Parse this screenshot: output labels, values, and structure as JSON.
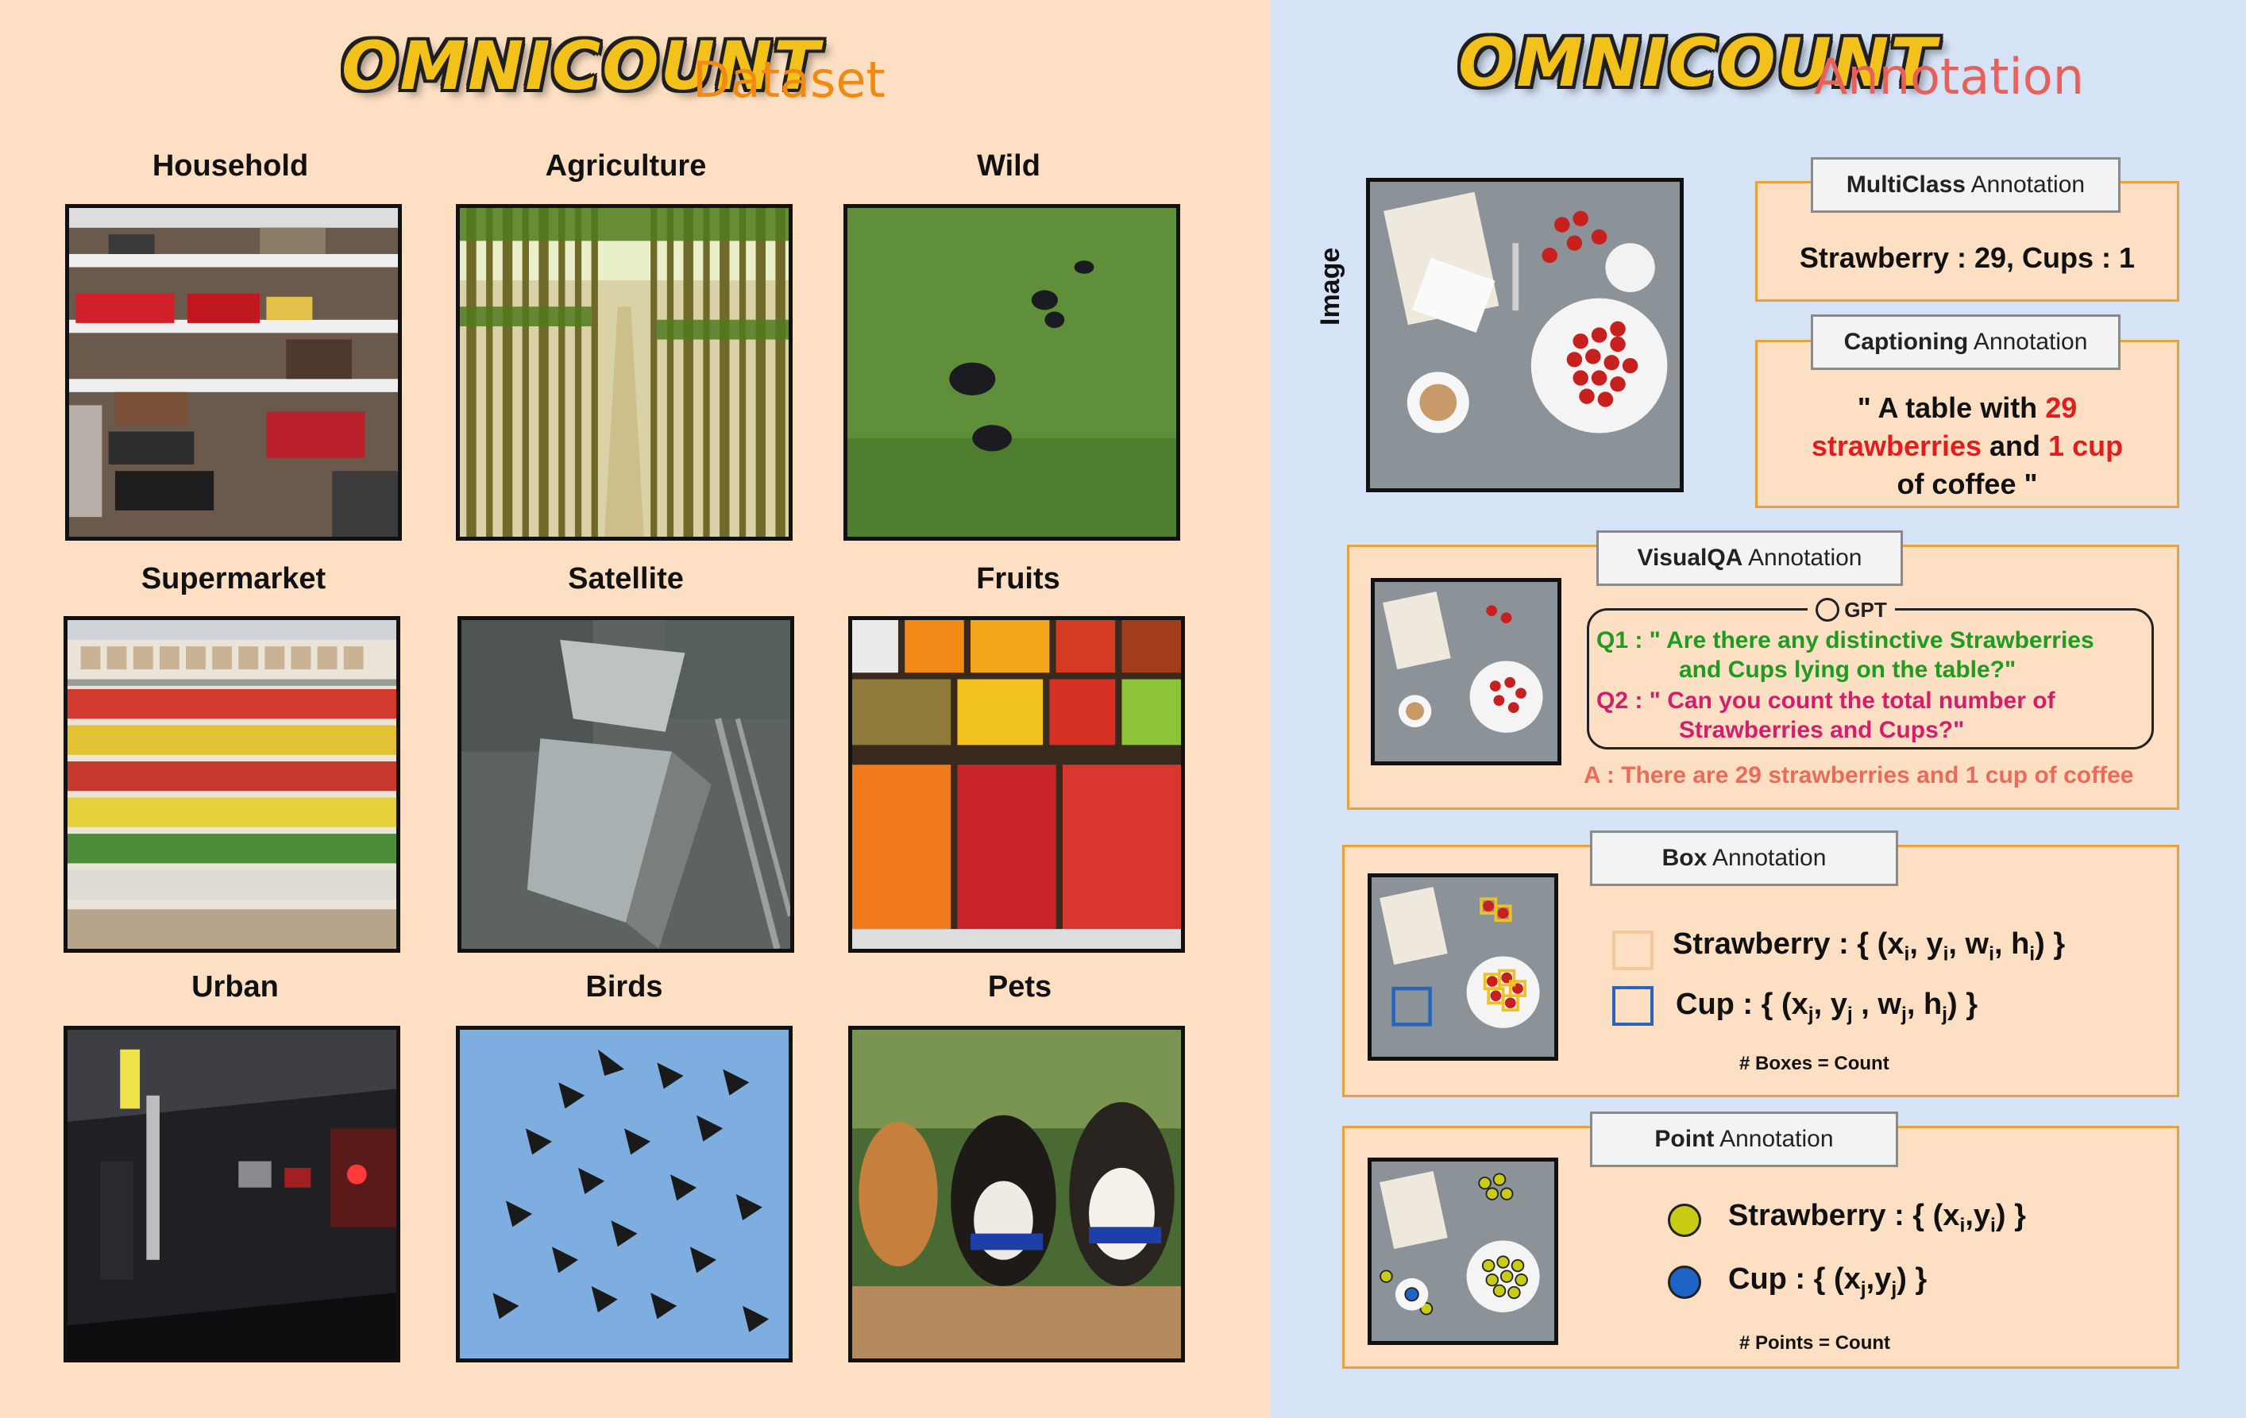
{
  "dataset": {
    "logo": "OMNICOUNT",
    "word": "Dataset",
    "word_color": "#f08a12",
    "categories": [
      "Household",
      "Agriculture",
      "Wild",
      "Supermarket",
      "Satellite",
      "Fruits",
      "Urban",
      "Birds",
      "Pets"
    ]
  },
  "annotation": {
    "logo": "OMNICOUNT",
    "word": "Annotation",
    "word_color": "#e8605a",
    "image_label": "Image",
    "multiclass": {
      "tag_bold": "MultiClass",
      "tag_rest": " Annotation",
      "text": "Strawberry : 29, Cups : 1"
    },
    "captioning": {
      "tag_bold": "Captioning",
      "tag_rest": " Annotation",
      "line1": "\" A table with ",
      "num1": "29",
      "word1": "strawberries",
      "and": " and ",
      "num2": "1 cup",
      "line3": "of coffee \""
    },
    "visualqa": {
      "tag_bold": "VisualQA",
      "tag_rest": " Annotation",
      "gpt_label": "GPT",
      "q1_a": "Q1 : \" Are there any distinctive Strawberries",
      "q1_b": "and Cups lying on the table?\"",
      "q2_a": "Q2 : \" Can you count the total number of",
      "q2_b": "Strawberries and Cups?\"",
      "answer": "A : There are 29 strawberries and 1 cup of coffee"
    },
    "box": {
      "tag_bold": "Box",
      "tag_rest": " Annotation",
      "strawberry_label": "Strawberry : { (x",
      "cup_label": "Cup : { (x",
      "note": "# Boxes = Count",
      "strawberry_color": "#f5c89a",
      "cup_color": "#2a64b8"
    },
    "point": {
      "tag_bold": "Point",
      "tag_rest": " Annotation",
      "strawberry_label": "Strawberry : { (x",
      "cup_label": "Cup : { (x",
      "note": "# Points = Count",
      "strawberry_color": "#c8cc14",
      "cup_color": "#1f63c6"
    }
  }
}
